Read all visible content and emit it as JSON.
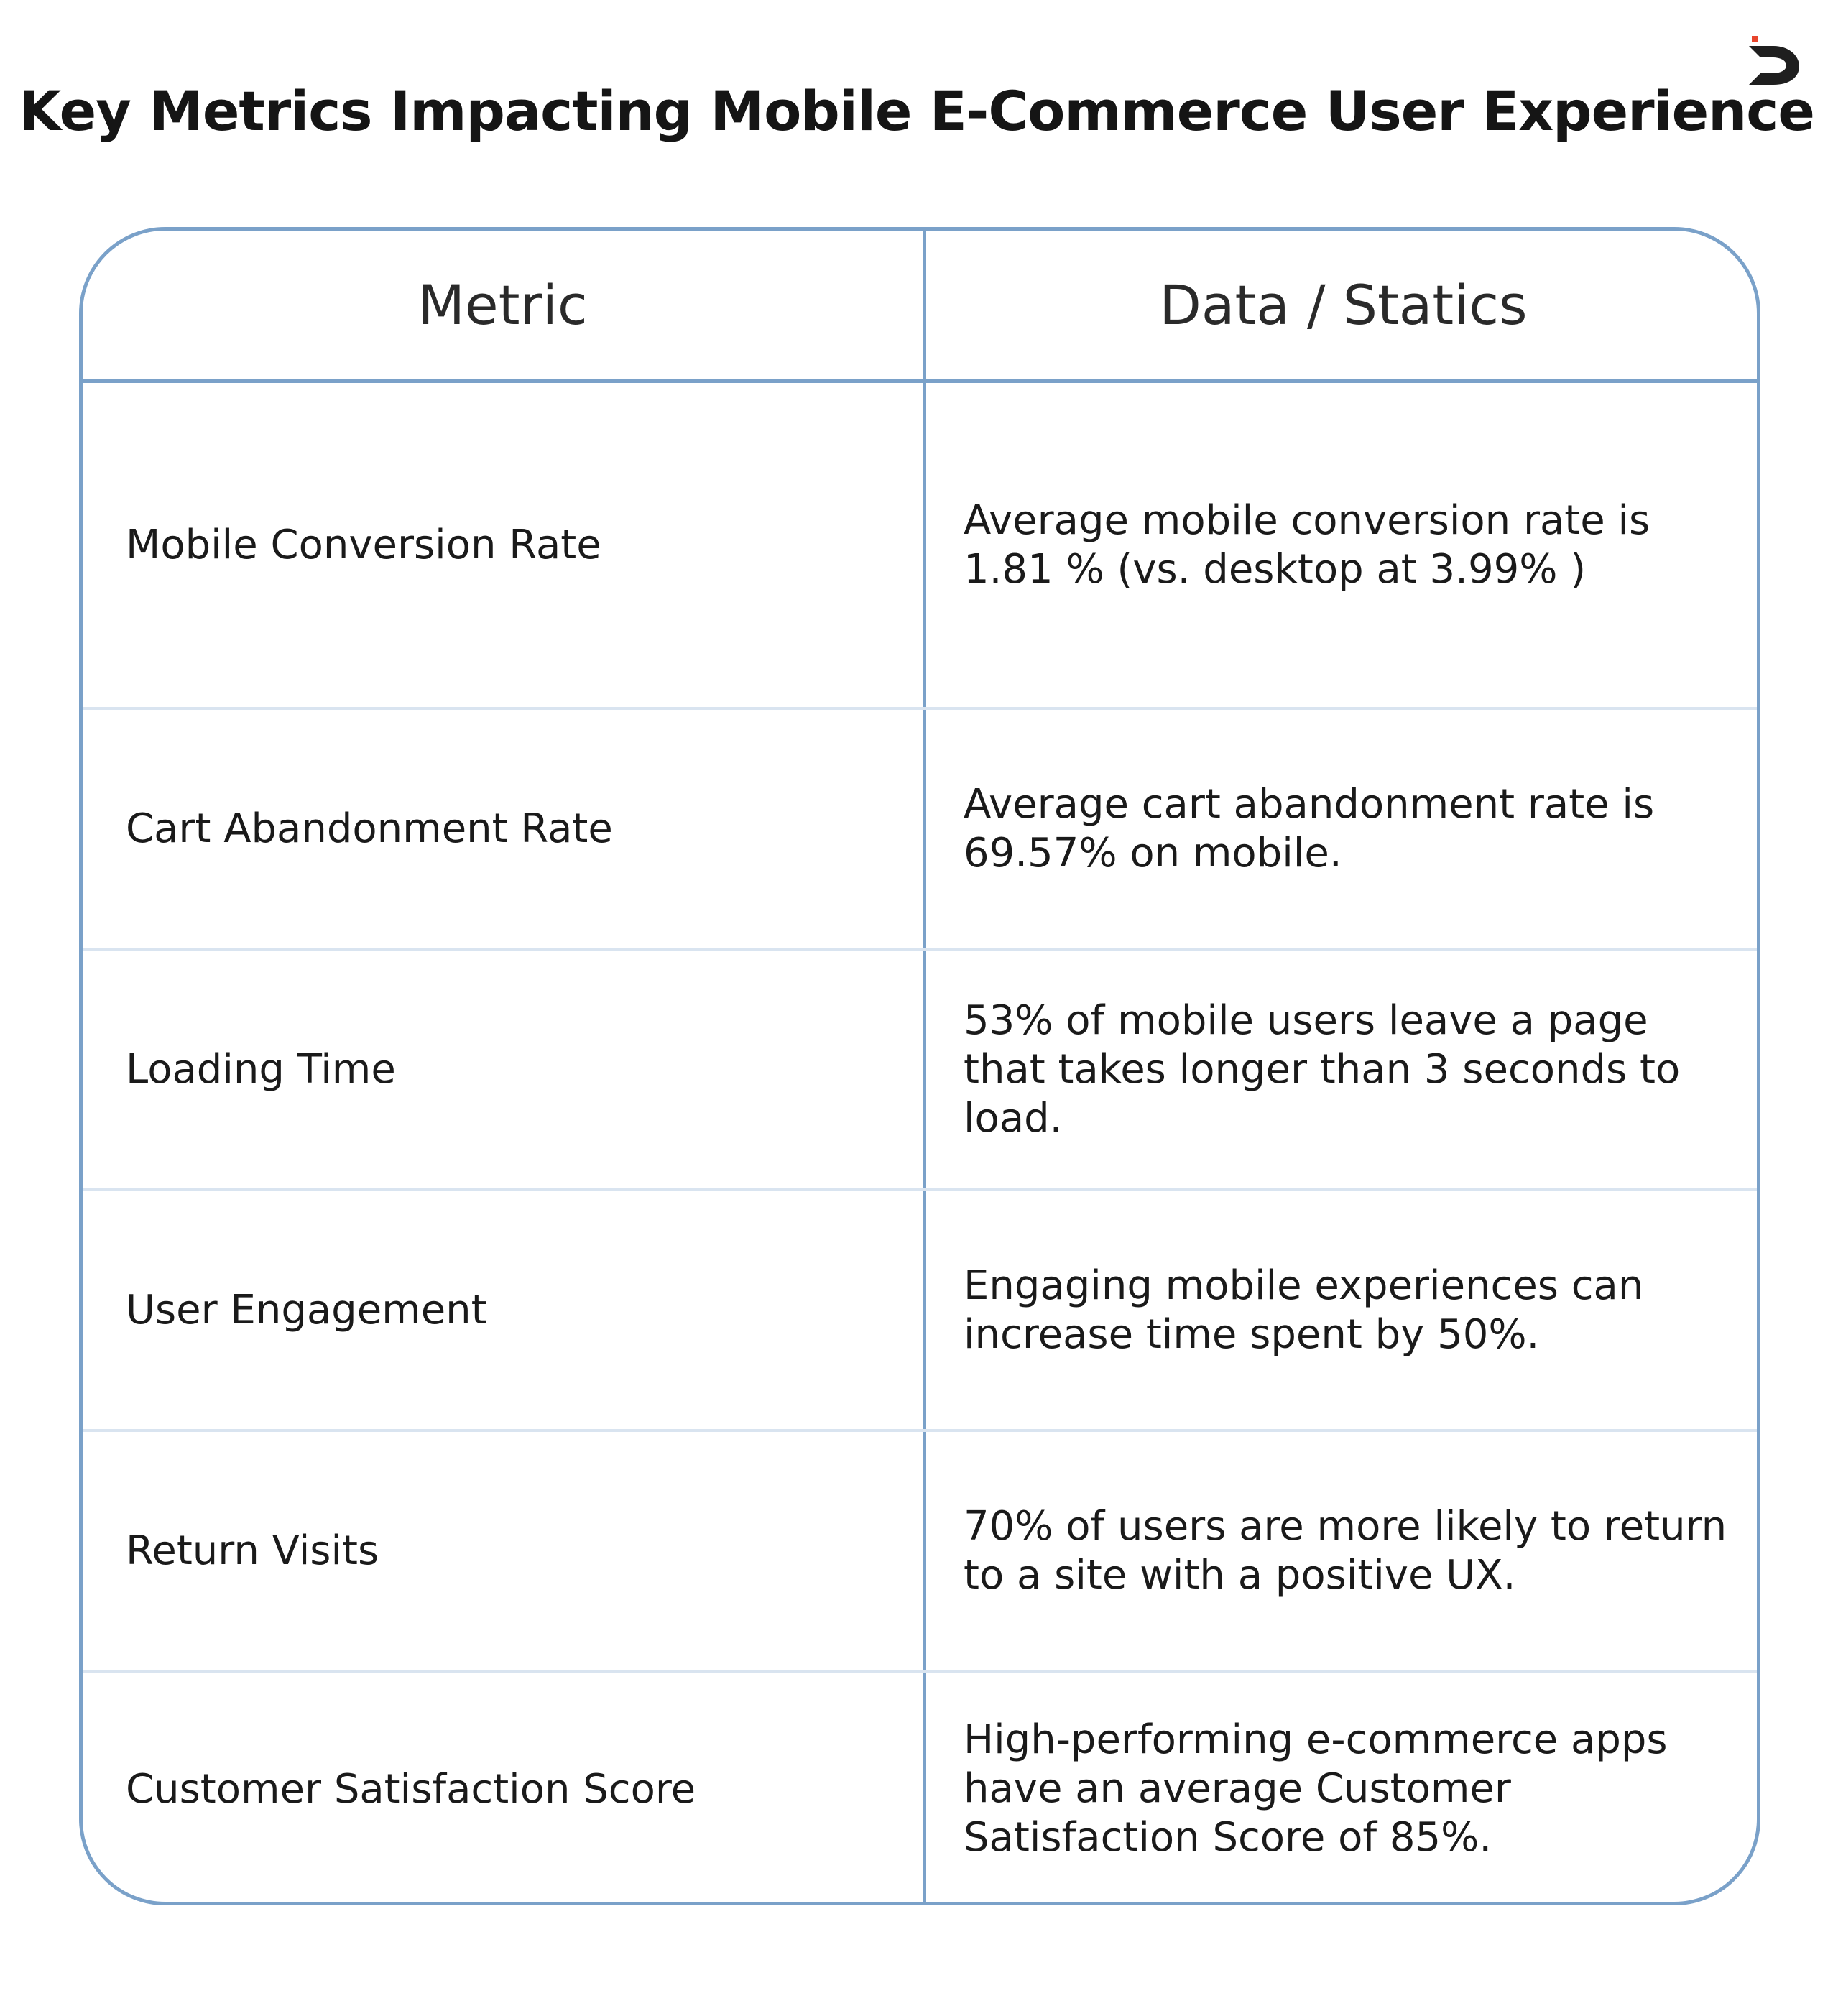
{
  "title": "Key Metrics Impacting Mobile E-Commerce User Experience",
  "logo_icon": "d-logo-icon",
  "colors": {
    "border": "#7aa1c9",
    "row_separator": "#d9e4f0",
    "logo_dark": "#1f1f1f",
    "logo_accent": "#e8452c"
  },
  "table": {
    "headers": [
      "Metric",
      "Data / Statics"
    ],
    "rows": [
      {
        "metric": "Mobile Conversion Rate",
        "data": "Average mobile conversion rate is 1.81 % (vs. desktop at 3.99% )"
      },
      {
        "metric": "Cart Abandonment Rate",
        "data": "Average cart abandonment rate is 69.57% on mobile."
      },
      {
        "metric": "Loading Time",
        "data": "53% of mobile users leave a page that takes longer than 3 seconds to load."
      },
      {
        "metric": "User Engagement",
        "data": "Engaging mobile experiences can increase time spent by 50%."
      },
      {
        "metric": "Return Visits",
        "data": "70% of users are more likely to return to a site with a positive UX."
      },
      {
        "metric": "Customer Satisfaction Score",
        "data": "High-performing e-commerce apps have an average Customer Satisfaction Score of 85%."
      }
    ]
  }
}
